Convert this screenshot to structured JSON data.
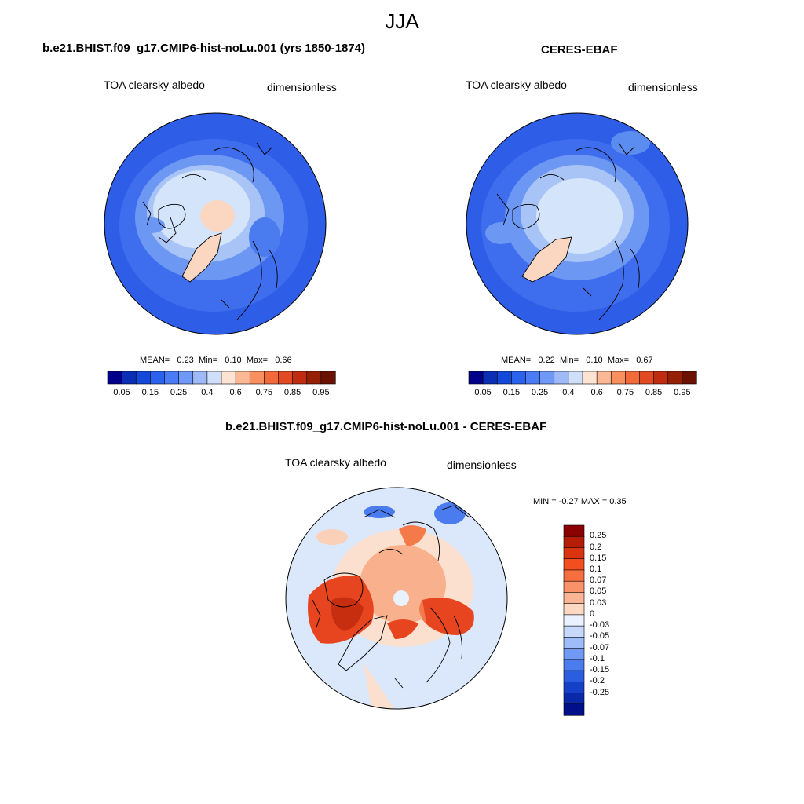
{
  "season": "JJA",
  "panels": {
    "model": {
      "title": "b.e21.BHIST.f09_g17.CMIP6-hist-noLu.001 (yrs 1850-1874)",
      "variable": "TOA clearsky albedo",
      "units": "dimensionless",
      "stats": {
        "mean_label": "MEAN=",
        "mean": "0.23",
        "min_label": "Min=",
        "min": "0.10",
        "max_label": "Max=",
        "max": "0.66"
      }
    },
    "obs": {
      "title": "CERES-EBAF",
      "variable": "TOA clearsky albedo",
      "units": "dimensionless",
      "stats": {
        "mean_label": "MEAN=",
        "mean": "0.22",
        "min_label": "Min=",
        "min": "0.10",
        "max_label": "Max=",
        "max": "0.67"
      }
    },
    "diff": {
      "title": "b.e21.BHIST.f09_g17.CMIP6-hist-noLu.001 - CERES-EBAF",
      "variable": "TOA clearsky albedo",
      "units": "dimensionless",
      "minmax_text": "MIN =  -0.27 MAX =   0.35"
    }
  },
  "colorbar_abs": {
    "labels": [
      "0.05",
      "0.15",
      "0.25",
      "0.4",
      "0.6",
      "0.75",
      "0.85",
      "0.95"
    ],
    "colors": [
      "#00008b",
      "#0a2fb4",
      "#1448d8",
      "#2a62ee",
      "#4a7cf5",
      "#7099f7",
      "#9ebbf8",
      "#cfdffa",
      "#ffe3d2",
      "#fcb894",
      "#f9905f",
      "#f26a3c",
      "#e14a22",
      "#bf2c10",
      "#962005",
      "#6b1100"
    ]
  },
  "colorbar_diff": {
    "labels": [
      "0.25",
      "0.2",
      "0.15",
      "0.1",
      "0.07",
      "0.05",
      "0.03",
      "0",
      "-0.03",
      "-0.05",
      "-0.07",
      "-0.1",
      "-0.15",
      "-0.2",
      "-0.25"
    ],
    "colors": [
      "#8b0000",
      "#b51d08",
      "#d93310",
      "#f24e1e",
      "#f76e3f",
      "#f99169",
      "#fbb494",
      "#fdd8c3",
      "#eaf1ff",
      "#c7d9fb",
      "#9ebcf8",
      "#7099f5",
      "#4a7cf0",
      "#2a5de0",
      "#1640c8",
      "#0a28a8",
      "#00108a"
    ]
  },
  "colors": {
    "ocean_blue": "#2e5ee8",
    "ocean_mid": "#5b8cf0",
    "ice_light": "#d3e4fb",
    "land_peach": "#fbd7c2",
    "diff_red": "#e6451f",
    "diff_pale": "#fbe0cf"
  }
}
